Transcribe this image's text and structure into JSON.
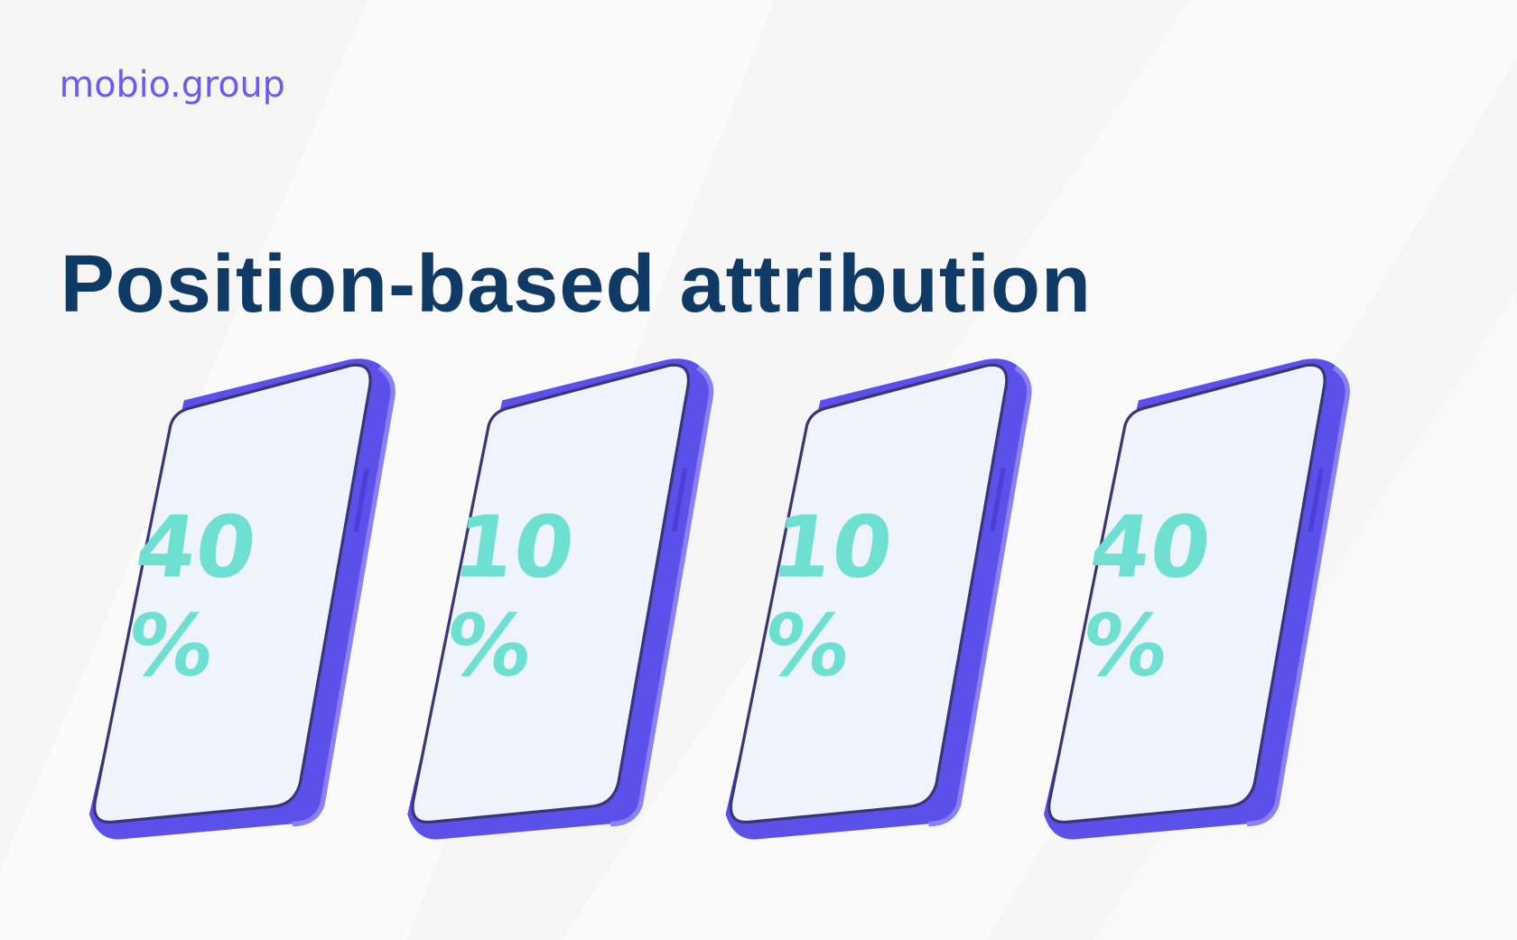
{
  "brand": "mobio.group",
  "title": "Position-based attribution",
  "phones": [
    {
      "number": "40",
      "sign": "%"
    },
    {
      "number": "10",
      "sign": "%"
    },
    {
      "number": "10",
      "sign": "%"
    },
    {
      "number": "40",
      "sign": "%"
    }
  ]
}
